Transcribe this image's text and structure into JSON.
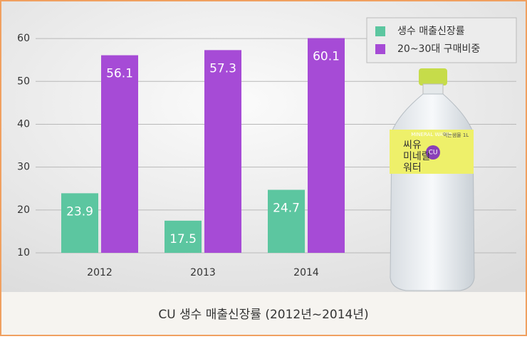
{
  "chart_data": {
    "type": "bar",
    "title": "CU 생수 매출신장률 (2012년~2014년)",
    "categories": [
      "2012",
      "2013",
      "2014"
    ],
    "series": [
      {
        "name": "생수 매출신장률",
        "color": "#5cc6a0",
        "values": [
          23.9,
          17.5,
          24.7
        ]
      },
      {
        "name": "20~30대 구매비중",
        "color": "#a64bd6",
        "values": [
          56.1,
          57.3,
          60.1
        ]
      }
    ],
    "ylim": [
      10,
      65
    ],
    "yticks": [
      10,
      20,
      30,
      40,
      50,
      60
    ],
    "grid": true,
    "legend": "top-right",
    "annotations": [
      "MINERAL WATER",
      "씨유",
      "미네랄",
      "워터",
      "CU",
      "먹는샘물 1L"
    ]
  }
}
